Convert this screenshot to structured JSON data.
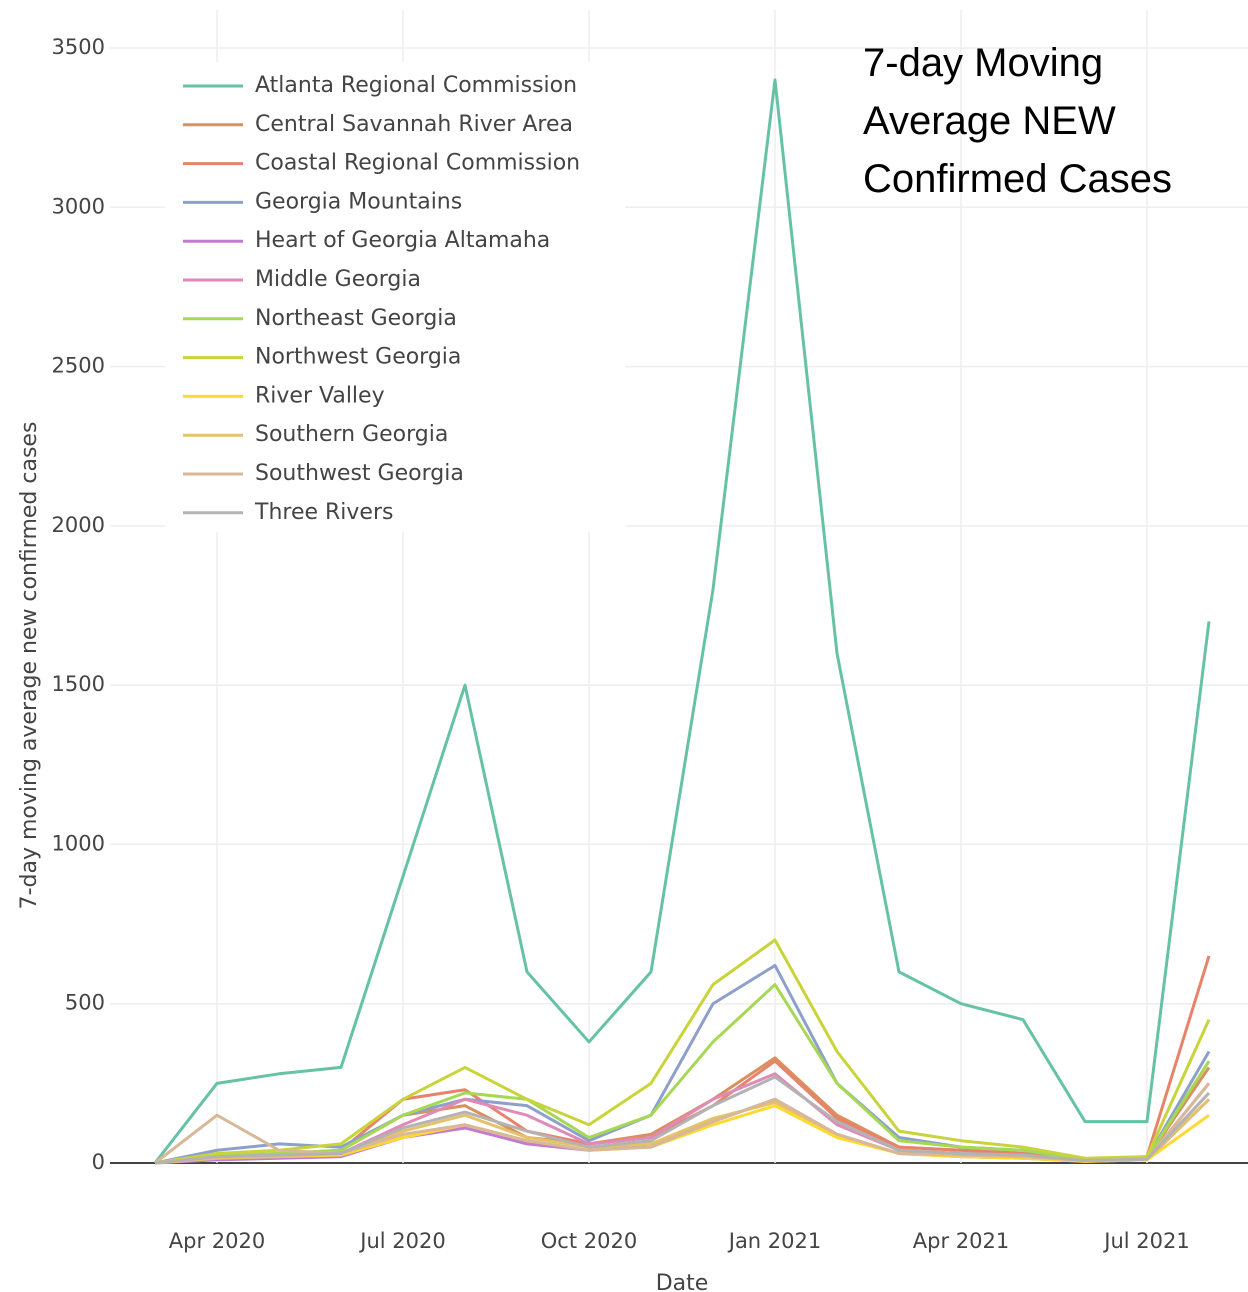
{
  "chart_data": {
    "type": "line",
    "title_lines": [
      "7-day Moving",
      "Average NEW",
      "Confirmed Cases"
    ],
    "x_label": "Date",
    "y_label": "7-day moving average new confirmed cases",
    "x": [
      "2020-03",
      "2020-04",
      "2020-05",
      "2020-06",
      "2020-07",
      "2020-08",
      "2020-09",
      "2020-10",
      "2020-11",
      "2020-12",
      "2021-01",
      "2021-02",
      "2021-03",
      "2021-04",
      "2021-05",
      "2021-06",
      "2021-07",
      "2021-08"
    ],
    "xlim": [
      "2020-03",
      "2021-08"
    ],
    "xticks": [
      {
        "value": "2020-04",
        "label": "Apr 2020"
      },
      {
        "value": "2020-07",
        "label": "Jul 2020"
      },
      {
        "value": "2020-10",
        "label": "Oct 2020"
      },
      {
        "value": "2021-01",
        "label": "Jan 2021"
      },
      {
        "value": "2021-04",
        "label": "Apr 2021"
      },
      {
        "value": "2021-07",
        "label": "Jul 2021"
      }
    ],
    "ylim": [
      0,
      3500
    ],
    "yticks": [
      0,
      500,
      1000,
      1500,
      2000,
      2500,
      3000,
      3500
    ],
    "grid": true,
    "legend": "top-left",
    "series": [
      {
        "name": "Atlanta Regional Commission",
        "color": "#66c2a5",
        "values": [
          0,
          250,
          280,
          300,
          900,
          1500,
          600,
          380,
          600,
          1800,
          3400,
          1600,
          600,
          500,
          450,
          130,
          130,
          1700
        ]
      },
      {
        "name": "Central Savannah River Area",
        "color": "#d9905c",
        "values": [
          0,
          20,
          30,
          40,
          150,
          180,
          80,
          60,
          90,
          200,
          330,
          150,
          50,
          40,
          30,
          10,
          15,
          300
        ]
      },
      {
        "name": "Coastal Regional Commission",
        "color": "#e8836b",
        "values": [
          0,
          20,
          25,
          40,
          200,
          230,
          100,
          60,
          80,
          180,
          320,
          140,
          50,
          40,
          30,
          10,
          20,
          650
        ]
      },
      {
        "name": "Georgia Mountains",
        "color": "#8da0cb",
        "values": [
          0,
          40,
          60,
          50,
          150,
          200,
          180,
          70,
          150,
          500,
          620,
          250,
          80,
          50,
          40,
          10,
          15,
          350
        ]
      },
      {
        "name": "Heart of Georgia Altamaha",
        "color": "#c27bd1",
        "values": [
          0,
          10,
          15,
          20,
          80,
          110,
          60,
          40,
          60,
          130,
          200,
          90,
          30,
          20,
          15,
          5,
          10,
          200
        ]
      },
      {
        "name": "Middle Georgia",
        "color": "#e08ab8",
        "values": [
          0,
          20,
          25,
          30,
          120,
          200,
          150,
          60,
          80,
          200,
          280,
          120,
          40,
          30,
          25,
          8,
          12,
          250
        ]
      },
      {
        "name": "Northeast Georgia",
        "color": "#a6d854",
        "values": [
          0,
          25,
          30,
          40,
          150,
          220,
          200,
          80,
          150,
          380,
          560,
          250,
          70,
          50,
          40,
          10,
          15,
          320
        ]
      },
      {
        "name": "Northwest Georgia",
        "color": "#c8d43a",
        "values": [
          0,
          30,
          40,
          60,
          200,
          300,
          200,
          120,
          250,
          560,
          700,
          350,
          100,
          70,
          50,
          15,
          20,
          450
        ]
      },
      {
        "name": "River Valley",
        "color": "#ffd92f",
        "values": [
          0,
          20,
          20,
          25,
          80,
          120,
          70,
          40,
          50,
          120,
          180,
          80,
          30,
          20,
          15,
          5,
          10,
          150
        ]
      },
      {
        "name": "Southern Georgia",
        "color": "#e5c26a",
        "values": [
          0,
          15,
          20,
          30,
          100,
          150,
          80,
          50,
          60,
          140,
          190,
          90,
          30,
          25,
          20,
          8,
          12,
          200
        ]
      },
      {
        "name": "Southwest Georgia",
        "color": "#d8b896",
        "values": [
          0,
          150,
          40,
          30,
          90,
          120,
          70,
          40,
          50,
          130,
          200,
          90,
          30,
          25,
          20,
          8,
          12,
          250
        ]
      },
      {
        "name": "Three Rivers",
        "color": "#b3b3b3",
        "values": [
          0,
          20,
          25,
          30,
          110,
          160,
          100,
          50,
          70,
          180,
          270,
          130,
          40,
          30,
          25,
          8,
          12,
          220
        ]
      }
    ]
  }
}
